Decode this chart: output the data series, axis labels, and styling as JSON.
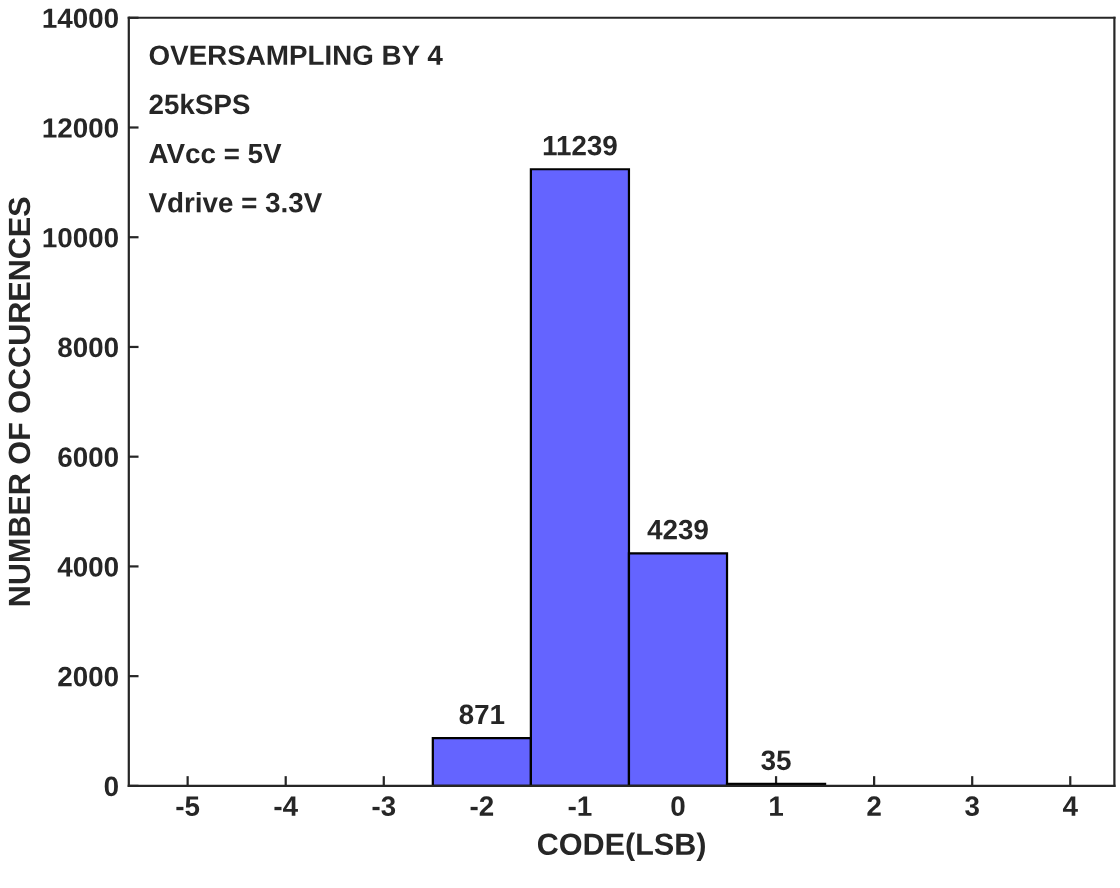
{
  "chart_data": {
    "type": "histogram",
    "xlabel": "CODE(LSB)",
    "ylabel": "NUMBER OF OCCURENCES",
    "annotations": [
      "OVERSAMPLING BY 4",
      "25kSPS",
      "AVcc = 5V",
      "Vdrive = 3.3V"
    ],
    "bins": [
      -2.5,
      -1.5,
      -0.5,
      0.5,
      1.5
    ],
    "values": [
      871,
      11239,
      4239,
      35
    ],
    "color": "#6464ff",
    "data_labels": true,
    "xlim": [
      -5.6,
      4.45
    ],
    "xticks": [
      -5,
      -4,
      -3,
      -2,
      -1,
      0,
      1,
      2,
      3,
      4
    ],
    "ylim": [
      0,
      14000
    ],
    "yticks": [
      0,
      2000,
      4000,
      6000,
      8000,
      10000,
      12000,
      14000
    ],
    "grid": false,
    "legend": false
  }
}
